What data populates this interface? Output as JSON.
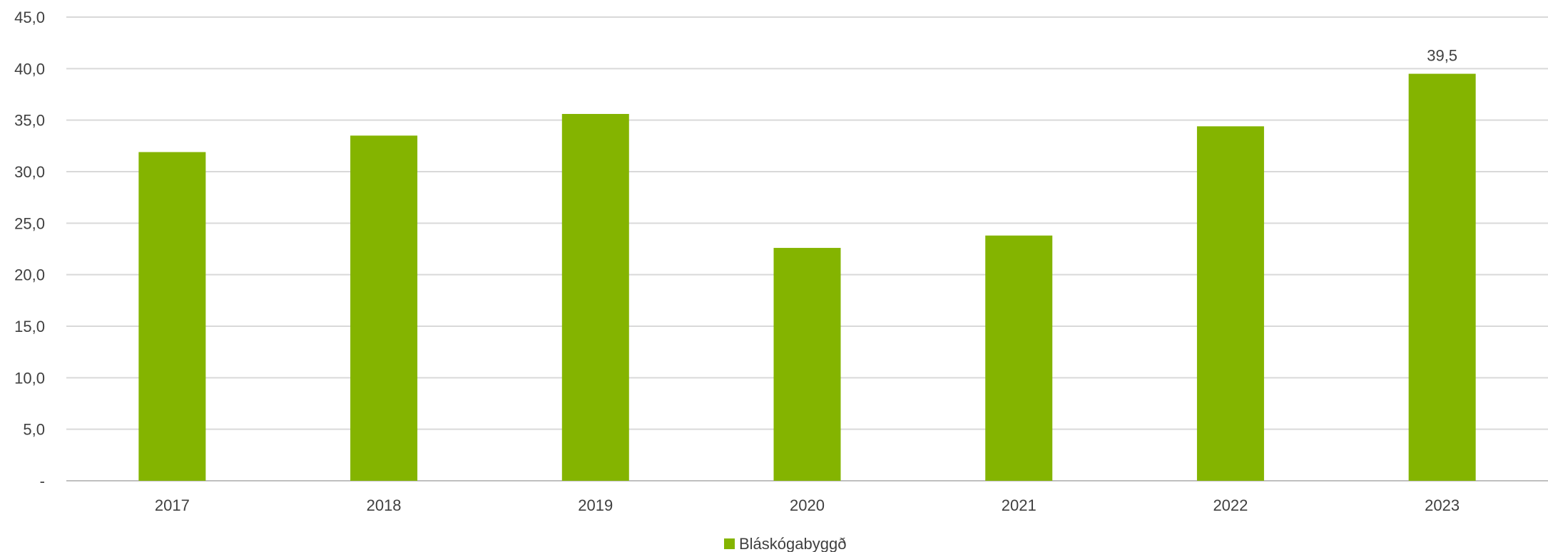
{
  "chart_data": {
    "type": "bar",
    "categories": [
      "2017",
      "2018",
      "2019",
      "2020",
      "2021",
      "2022",
      "2023"
    ],
    "series": [
      {
        "name": "Bláskógabyggð",
        "values": [
          31.9,
          33.5,
          35.6,
          22.6,
          23.8,
          34.4,
          39.5
        ],
        "color": "#84b400"
      }
    ],
    "data_labels": [
      {
        "category": "2023",
        "text": "39,5"
      }
    ],
    "ylim": [
      0,
      45
    ],
    "ytick_labels": [
      "-",
      "5,0",
      "10,0",
      "15,0",
      "20,0",
      "25,0",
      "30,0",
      "35,0",
      "40,0",
      "45,0"
    ],
    "grid": true,
    "legend_position": "bottom",
    "title": "",
    "xlabel": "",
    "ylabel": ""
  }
}
